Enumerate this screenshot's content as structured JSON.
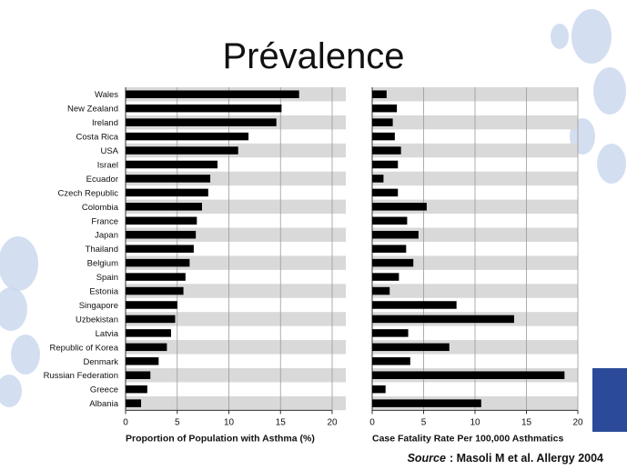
{
  "slide": {
    "title": "Prévalence",
    "source_label": "Source",
    "source_text": ": Masoli M et al. Allergy 2004"
  },
  "colors": {
    "bar": "#000000",
    "band": "#d9d9d9",
    "grid": "#9a9a9a",
    "decor": "#c9d6ee"
  },
  "chart_data": [
    {
      "type": "bar",
      "orientation": "horizontal",
      "xlabel": "Proportion of Population with Asthma (%)",
      "xlim": [
        0,
        20
      ],
      "xticks": [
        0,
        5,
        10,
        15,
        20
      ],
      "grid": true,
      "categories": [
        "Wales",
        "New Zealand",
        "Ireland",
        "Costa Rica",
        "USA",
        "Israel",
        "Ecuador",
        "Czech Republic",
        "Colombia",
        "France",
        "Japan",
        "Thailand",
        "Belgium",
        "Spain",
        "Estonia",
        "Singapore",
        "Uzbekistan",
        "Latvia",
        "Republic of Korea",
        "Denmark",
        "Russian Federation",
        "Greece",
        "Albania"
      ],
      "values": [
        16.8,
        15.1,
        14.6,
        11.9,
        10.9,
        8.9,
        8.2,
        8.0,
        7.4,
        6.9,
        6.8,
        6.6,
        6.2,
        5.8,
        5.6,
        5.0,
        4.8,
        4.4,
        4.0,
        3.2,
        2.4,
        2.1,
        1.5
      ]
    },
    {
      "type": "bar",
      "orientation": "horizontal",
      "xlabel": "Case Fatality Rate Per 100,000 Asthmatics",
      "xlim": [
        0,
        20
      ],
      "xticks": [
        0,
        5,
        10,
        15,
        20
      ],
      "grid": true,
      "categories": [
        "Wales",
        "New Zealand",
        "Ireland",
        "Costa Rica",
        "USA",
        "Israel",
        "Ecuador",
        "Czech Republic",
        "Colombia",
        "France",
        "Japan",
        "Thailand",
        "Belgium",
        "Spain",
        "Estonia",
        "Singapore",
        "Uzbekistan",
        "Latvia",
        "Republic of Korea",
        "Denmark",
        "Russian Federation",
        "Greece",
        "Albania"
      ],
      "values": [
        1.4,
        2.4,
        2.0,
        2.2,
        2.8,
        2.5,
        1.1,
        2.5,
        5.3,
        3.4,
        4.5,
        3.3,
        4.0,
        2.6,
        1.7,
        8.2,
        13.8,
        3.5,
        7.5,
        3.7,
        18.7,
        1.3,
        10.6
      ]
    }
  ]
}
